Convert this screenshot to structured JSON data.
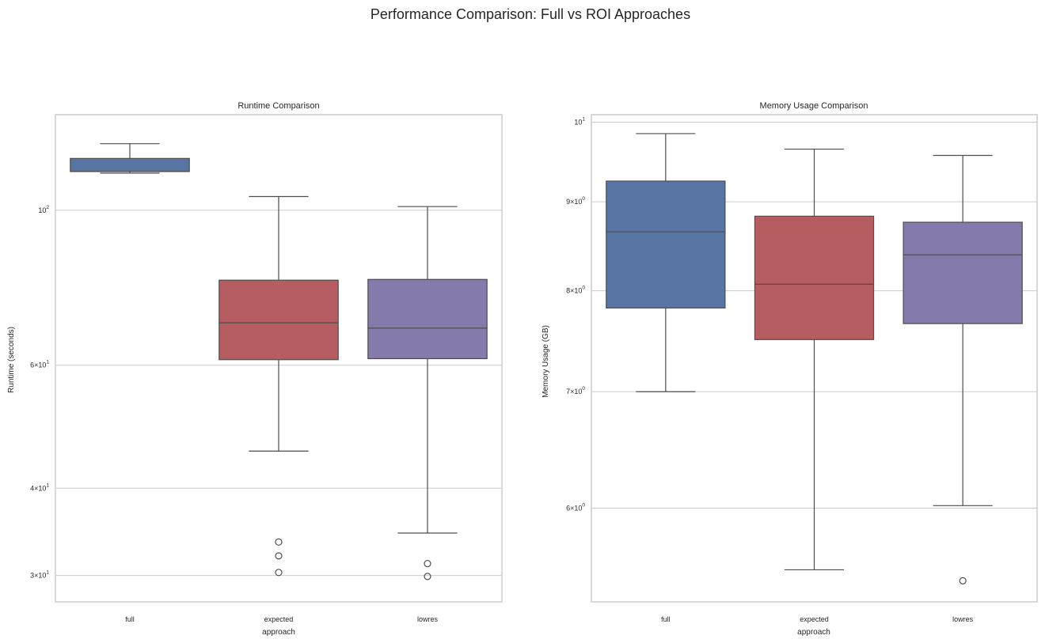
{
  "figure": {
    "title": "Performance Comparison: Full vs ROI Approaches"
  },
  "colors": {
    "full": "#5975a4",
    "expected": "#b55d60",
    "lowres": "#857aab",
    "line": "#4d4d4d",
    "frame": "#cccccc",
    "grid": "#cccccc"
  },
  "chart_data": [
    {
      "type": "box",
      "title": "Runtime Comparison",
      "xlabel": "approach",
      "ylabel": "Runtime (seconds)",
      "yscale": "log",
      "ylim": [
        27.5,
        137
      ],
      "grid": "horizontal major only",
      "categories": [
        "full",
        "expected",
        "lowres"
      ],
      "yticks": [
        {
          "value": 100,
          "base": "10",
          "exp": "2"
        },
        {
          "value": 60,
          "base": "6×10",
          "exp": "1"
        },
        {
          "value": 40,
          "base": "4×10",
          "exp": "1"
        },
        {
          "value": 30,
          "base": "3×10",
          "exp": "1"
        }
      ],
      "series": [
        {
          "category": "full",
          "whislo": 113,
          "q1": 113.6,
          "med": 113.6,
          "q3": 118.6,
          "whishi": 124.5,
          "fliers": []
        },
        {
          "category": "expected",
          "whislo": 45.2,
          "q1": 61.1,
          "med": 69.0,
          "q3": 79.4,
          "whishi": 104.6,
          "fliers": [
            33.5,
            32.0,
            30.3
          ]
        },
        {
          "category": "lowres",
          "whislo": 34.5,
          "q1": 61.3,
          "med": 67.8,
          "q3": 79.6,
          "whishi": 101.2,
          "fliers": [
            31.2,
            29.9
          ]
        }
      ]
    },
    {
      "type": "box",
      "title": "Memory Usage Comparison",
      "xlabel": "approach",
      "ylabel": "Memory Usage (GB)",
      "yscale": "log",
      "ylim": [
        5.3,
        10.1
      ],
      "grid": "horizontal major only",
      "categories": [
        "full",
        "expected",
        "lowres"
      ],
      "yticks": [
        {
          "value": 10,
          "base": "10",
          "exp": "1"
        },
        {
          "value": 9,
          "base": "9×10",
          "exp": "0"
        },
        {
          "value": 8,
          "base": "8×10",
          "exp": "0"
        },
        {
          "value": 7,
          "base": "7×10",
          "exp": "0"
        },
        {
          "value": 6,
          "base": "6×10",
          "exp": "0"
        }
      ],
      "series": [
        {
          "category": "full",
          "whislo": 7.0,
          "q1": 7.82,
          "med": 8.65,
          "q3": 9.25,
          "whishi": 9.85,
          "fliers": []
        },
        {
          "category": "expected",
          "whislo": 5.53,
          "q1": 7.5,
          "med": 8.07,
          "q3": 8.83,
          "whishi": 9.65,
          "fliers": []
        },
        {
          "category": "lowres",
          "whislo": 6.02,
          "q1": 7.66,
          "med": 8.39,
          "q3": 8.76,
          "whishi": 9.57,
          "fliers": [
            5.45
          ]
        }
      ]
    }
  ]
}
